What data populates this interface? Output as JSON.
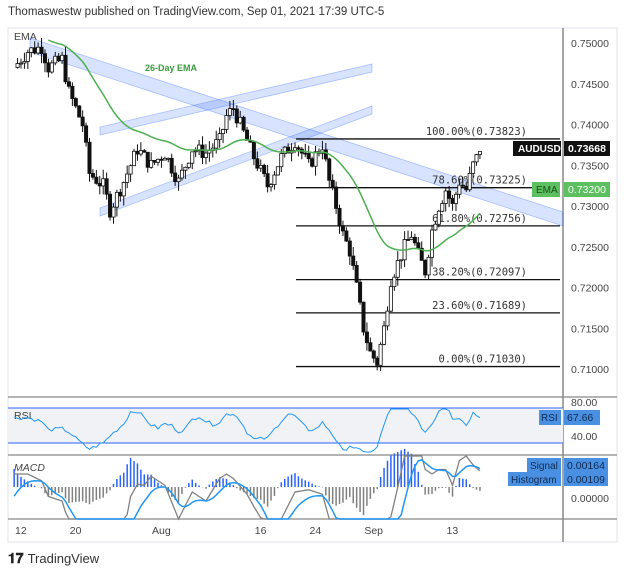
{
  "header": "Thomaswestw published on TradingView.com, Sep 01, 2021 17:39 UTC-5",
  "brand": "TradingView",
  "chart_data": {
    "type": "candlestick",
    "symbol": "AUDUSD",
    "last_price": "0.73668",
    "ema_label": "EMA",
    "ema_value": "0.73200",
    "ema_annotation": "26-Day EMA",
    "pane_label": "EMA",
    "price_ticks": [
      "0.75000",
      "0.74500",
      "0.74000",
      "0.73500",
      "0.73000",
      "0.72500",
      "0.72000",
      "0.71500",
      "0.71000"
    ],
    "price_tick_values": [
      0.75,
      0.745,
      0.74,
      0.735,
      0.73,
      0.725,
      0.72,
      0.715,
      0.71
    ],
    "time_ticks": [
      {
        "label": "12",
        "day": 0
      },
      {
        "label": "20",
        "day": 8
      },
      {
        "label": "Aug",
        "day": 20
      },
      {
        "label": "16",
        "day": 35
      },
      {
        "label": "24",
        "day": 43
      },
      {
        "label": "Sep",
        "day": 51
      },
      {
        "label": "13",
        "day": 63
      }
    ],
    "price_path": [
      [
        -1,
        0.747
      ],
      [
        1,
        0.749
      ],
      [
        3,
        0.7495
      ],
      [
        4,
        0.747
      ],
      [
        6,
        0.748
      ],
      [
        7,
        0.744
      ],
      [
        9,
        0.74
      ],
      [
        10,
        0.734
      ],
      [
        12,
        0.7325
      ],
      [
        13,
        0.7295
      ],
      [
        15,
        0.733
      ],
      [
        17,
        0.737
      ],
      [
        19,
        0.735
      ],
      [
        21,
        0.7365
      ],
      [
        23,
        0.733
      ],
      [
        25,
        0.737
      ],
      [
        27,
        0.7365
      ],
      [
        29,
        0.738
      ],
      [
        30,
        0.741
      ],
      [
        31,
        0.742
      ],
      [
        33,
        0.738
      ],
      [
        34,
        0.736
      ],
      [
        36,
        0.7325
      ],
      [
        38,
        0.736
      ],
      [
        40,
        0.738
      ],
      [
        42,
        0.735
      ],
      [
        44,
        0.7375
      ],
      [
        45,
        0.733
      ],
      [
        46,
        0.73
      ],
      [
        47,
        0.7265
      ],
      [
        48,
        0.7245
      ],
      [
        49,
        0.72
      ],
      [
        50,
        0.715
      ],
      [
        51,
        0.712
      ],
      [
        52,
        0.7108
      ],
      [
        53,
        0.715
      ],
      [
        54,
        0.721
      ],
      [
        56,
        0.725
      ],
      [
        57,
        0.7265
      ],
      [
        58,
        0.724
      ],
      [
        59,
        0.722
      ],
      [
        60,
        0.727
      ],
      [
        61,
        0.73
      ],
      [
        62,
        0.732
      ],
      [
        63,
        0.73
      ],
      [
        64,
        0.733
      ],
      [
        65,
        0.732
      ],
      [
        66,
        0.735
      ],
      [
        67,
        0.7367
      ]
    ],
    "fibonacci": [
      {
        "label": "100.00%(0.73823)",
        "price": 0.73823
      },
      {
        "label": "78.60%(0.73225)",
        "price": 0.73225
      },
      {
        "label": "61.80%(0.72756)",
        "price": 0.72756
      },
      {
        "label": "38.20%(0.72097)",
        "price": 0.72097
      },
      {
        "label": "23.60%(0.71689)",
        "price": 0.71689
      },
      {
        "label": "0.00%(0.71030)",
        "price": 0.7103
      }
    ],
    "rsi": {
      "label": "RSI",
      "value": "67.66",
      "ticks": [
        "80.00",
        "40.00"
      ]
    },
    "macd": {
      "label": "MACD",
      "signal_label": "Signal",
      "signal_value": "0.00164",
      "histogram_label": "Histogram",
      "histogram_value": "0.00109",
      "zero_tick": "0.00000"
    },
    "colors": {
      "ema": "#4caf50",
      "channel": "#2962ff",
      "rsi": "#2196f3",
      "macd_blue": "#2962ff",
      "macd_grey": "#808080"
    }
  }
}
